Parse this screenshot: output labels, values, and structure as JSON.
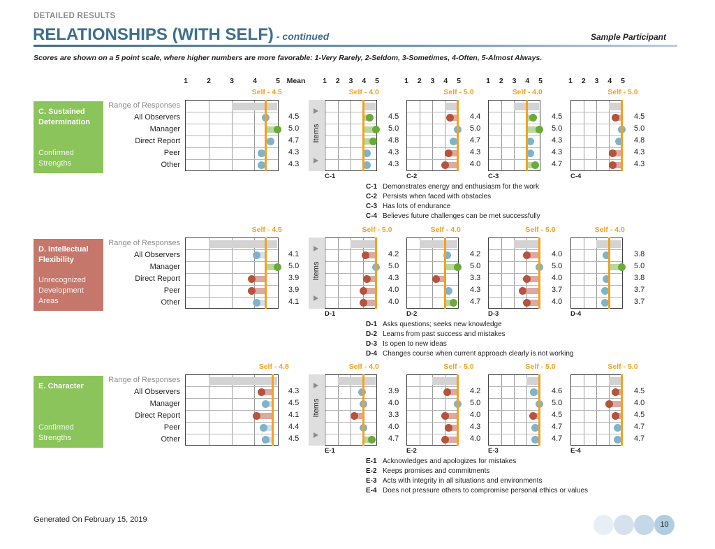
{
  "header": {
    "section_label": "DETAILED RESULTS",
    "title": "RELATIONSHIPS (WITH SELF)",
    "title_suffix": "- continued",
    "participant": "Sample Participant",
    "scale_note": "Scores are shown on a 5 point scale, where higher numbers are more favorable: 1-Very Rarely, 2-Seldom, 3-Sometimes, 4-Often, 5-Almost Always."
  },
  "scale": {
    "ticks": [
      "1",
      "2",
      "3",
      "4",
      "5"
    ],
    "mean_label": "Mean",
    "min": 1,
    "max": 5
  },
  "row_labels": [
    "Range of Responses",
    "All Observers",
    "Manager",
    "Direct Report",
    "Peer",
    "Other"
  ],
  "items_label": "Items",
  "colors": {
    "green": "#8bc45a",
    "red": "#c4776a",
    "self": "#f5a11f",
    "dot_green": "#6aaa38",
    "dot_red": "#b5533c",
    "dot_blue": "#7fb3cc",
    "bar_green": "#b7d89e",
    "bar_red": "#dcaaa2",
    "bar_blue": "#cfe4ee"
  },
  "sections": [
    {
      "title": "C. Sustained Determination",
      "subtitle": "Confirmed Strengths",
      "color": "#8bc45a",
      "self_label": "Self - 4.5",
      "self": 4.5,
      "range": [
        3,
        5
      ],
      "means": [
        "4.5",
        "5.0",
        "4.7",
        "4.3",
        "4.3"
      ],
      "items": [
        {
          "code": "C-1",
          "text": "Demonstrates energy and enthusiasm for the work",
          "self_label": "Self - 4.0",
          "self": 4.0,
          "range": [
            4,
            5
          ],
          "values": [
            "4.5",
            "5.0",
            "4.8",
            "4.3",
            "4.3"
          ]
        },
        {
          "code": "C-2",
          "text": "Persists when faced with obstacles",
          "self_label": "Self - 5.0",
          "self": 5.0,
          "range": [
            4,
            5
          ],
          "values": [
            "4.4",
            "5.0",
            "4.7",
            "4.3",
            "4.0"
          ]
        },
        {
          "code": "C-3",
          "text": "Has lots of endurance",
          "self_label": "Self - 4.0",
          "self": 4.0,
          "range": [
            3,
            5
          ],
          "values": [
            "4.5",
            "5.0",
            "4.3",
            "4.3",
            "4.7"
          ]
        },
        {
          "code": "C-4",
          "text": "Believes future challenges can be met successfully",
          "self_label": "Self - 5.0",
          "self": 5.0,
          "range": [
            4,
            5
          ],
          "values": [
            "4.5",
            "5.0",
            "4.8",
            "4.3",
            "4.3"
          ]
        }
      ]
    },
    {
      "title": "D. Intellectual Flexibility",
      "subtitle": "Unrecognized Development Areas",
      "color": "#c4776a",
      "self_label": "Self - 4.5",
      "self": 4.5,
      "range": [
        2,
        5
      ],
      "means": [
        "4.1",
        "5.0",
        "3.9",
        "3.9",
        "4.1"
      ],
      "items": [
        {
          "code": "D-1",
          "text": "Asks questions; seeks new knowledge",
          "self_label": "Self - 5.0",
          "self": 5.0,
          "range": [
            3,
            5
          ],
          "values": [
            "4.2",
            "5.0",
            "4.3",
            "4.0",
            "4.0"
          ]
        },
        {
          "code": "D-2",
          "text": "Learns from past success and mistakes",
          "self_label": "Self - 4.0",
          "self": 4.0,
          "range": [
            2,
            5
          ],
          "values": [
            "4.2",
            "5.0",
            "3.3",
            "4.3",
            "4.7"
          ]
        },
        {
          "code": "D-3",
          "text": "Is open to new ideas",
          "self_label": "Self - 5.0",
          "self": 5.0,
          "range": [
            3,
            5
          ],
          "values": [
            "4.0",
            "5.0",
            "4.0",
            "3.7",
            "4.0"
          ]
        },
        {
          "code": "D-4",
          "text": "Changes course when current approach clearly is not working",
          "self_label": "Self - 4.0",
          "self": 4.0,
          "range": [
            3,
            5
          ],
          "values": [
            "3.8",
            "5.0",
            "3.8",
            "3.7",
            "3.7"
          ]
        }
      ]
    },
    {
      "title": "E. Character",
      "subtitle": "Confirmed Strengths",
      "color": "#8bc45a",
      "self_label": "Self - 4.8",
      "self": 4.8,
      "range": [
        2,
        5
      ],
      "means": [
        "4.3",
        "4.5",
        "4.1",
        "4.4",
        "4.5"
      ],
      "items": [
        {
          "code": "E-1",
          "text": "Acknowledges and apologizes for mistakes",
          "self_label": "Self - 4.0",
          "self": 4.0,
          "range": [
            2,
            5
          ],
          "values": [
            "3.9",
            "4.0",
            "3.3",
            "4.0",
            "4.7"
          ]
        },
        {
          "code": "E-2",
          "text": "Keeps promises and commitments",
          "self_label": "Self - 5.0",
          "self": 5.0,
          "range": [
            3,
            5
          ],
          "values": [
            "4.2",
            "5.0",
            "4.0",
            "4.3",
            "4.0"
          ]
        },
        {
          "code": "E-3",
          "text": "Acts with integrity in all situations and environments",
          "self_label": "Self - 5.0",
          "self": 5.0,
          "range": [
            4,
            5
          ],
          "values": [
            "4.6",
            "5.0",
            "4.5",
            "4.7",
            "4.7"
          ]
        },
        {
          "code": "E-4",
          "text": "Does not pressure others to compromise personal ethics or values",
          "self_label": "Self - 5.0",
          "self": 5.0,
          "range": [
            4,
            5
          ],
          "values": [
            "4.5",
            "4.0",
            "4.5",
            "4.7",
            "4.7"
          ]
        }
      ]
    }
  ],
  "footer": {
    "generated": "Generated On February 15, 2019",
    "page_number": "10"
  }
}
